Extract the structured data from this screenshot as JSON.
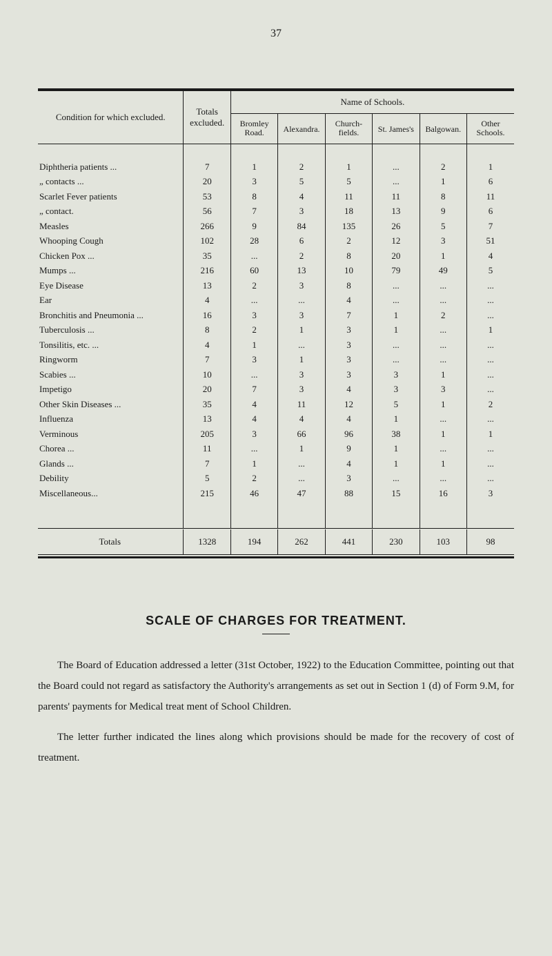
{
  "pageNumber": "37",
  "table": {
    "type": "table",
    "header": {
      "leftLabel": "Condition for which excluded.",
      "totalsLabel": "Totals excluded.",
      "superHeader": "Name of Schools.",
      "schools": [
        "Bromley Road.",
        "Alex­andra.",
        "Church­fields.",
        "St. James's",
        "Bal­gowan.",
        "Other Schools."
      ]
    },
    "rows": [
      {
        "label": "Diphtheria patients ...",
        "vals": [
          "7",
          "1",
          "2",
          "1",
          "...",
          "2",
          "1"
        ]
      },
      {
        "label": "„ contacts ...",
        "vals": [
          "20",
          "3",
          "5",
          "5",
          "...",
          "1",
          "6"
        ]
      },
      {
        "label": "Scarlet Fever patients",
        "vals": [
          "53",
          "8",
          "4",
          "11",
          "11",
          "8",
          "11"
        ]
      },
      {
        "label": "„ contact.",
        "vals": [
          "56",
          "7",
          "3",
          "18",
          "13",
          "9",
          "6"
        ]
      },
      {
        "label": "Measles",
        "vals": [
          "266",
          "9",
          "84",
          "135",
          "26",
          "5",
          "7"
        ]
      },
      {
        "label": "Whooping Cough",
        "vals": [
          "102",
          "28",
          "6",
          "2",
          "12",
          "3",
          "51"
        ]
      },
      {
        "label": "Chicken Pox ...",
        "vals": [
          "35",
          "...",
          "2",
          "8",
          "20",
          "1",
          "4"
        ]
      },
      {
        "label": "Mumps ...",
        "vals": [
          "216",
          "60",
          "13",
          "10",
          "79",
          "49",
          "5"
        ]
      },
      {
        "label": "Eye Disease",
        "vals": [
          "13",
          "2",
          "3",
          "8",
          "...",
          "...",
          "..."
        ]
      },
      {
        "label": "Ear",
        "vals": [
          "4",
          "...",
          "...",
          "4",
          "...",
          "...",
          "..."
        ]
      },
      {
        "label": "Bronchitis and Pneumonia ...",
        "vals": [
          "16",
          "3",
          "3",
          "7",
          "1",
          "2",
          "..."
        ]
      },
      {
        "label": "Tuberculosis ...",
        "vals": [
          "8",
          "2",
          "1",
          "3",
          "1",
          "...",
          "1"
        ]
      },
      {
        "label": "Tonsilitis, etc. ...",
        "vals": [
          "4",
          "1",
          "...",
          "3",
          "...",
          "...",
          "..."
        ]
      },
      {
        "label": "Ringworm",
        "vals": [
          "7",
          "3",
          "1",
          "3",
          "...",
          "...",
          "..."
        ]
      },
      {
        "label": "Scabies ...",
        "vals": [
          "10",
          "...",
          "3",
          "3",
          "3",
          "1",
          "..."
        ]
      },
      {
        "label": "Impetigo",
        "vals": [
          "20",
          "7",
          "3",
          "4",
          "3",
          "3",
          "..."
        ]
      },
      {
        "label": "Other Skin Diseases ...",
        "vals": [
          "35",
          "4",
          "11",
          "12",
          "5",
          "1",
          "2"
        ]
      },
      {
        "label": "Influenza",
        "vals": [
          "13",
          "4",
          "4",
          "4",
          "1",
          "...",
          "..."
        ]
      },
      {
        "label": "Verminous",
        "vals": [
          "205",
          "3",
          "66",
          "96",
          "38",
          "1",
          "1"
        ]
      },
      {
        "label": "Chorea ...",
        "vals": [
          "11",
          "...",
          "1",
          "9",
          "1",
          "...",
          "..."
        ]
      },
      {
        "label": "Glands ...",
        "vals": [
          "7",
          "1",
          "...",
          "4",
          "1",
          "1",
          "..."
        ]
      },
      {
        "label": "Debility",
        "vals": [
          "5",
          "2",
          "...",
          "3",
          "...",
          "...",
          "..."
        ]
      },
      {
        "label": "Miscellaneous...",
        "vals": [
          "215",
          "46",
          "47",
          "88",
          "15",
          "16",
          "3"
        ]
      }
    ],
    "totals": {
      "label": "Totals",
      "vals": [
        "1328",
        "194",
        "262",
        "441",
        "230",
        "103",
        "98"
      ]
    },
    "colors": {
      "background": "#e2e4dc",
      "text": "#1a1a1a",
      "rule": "#1a1a1a"
    },
    "column_widths": {
      "label": 185,
      "num": 60
    },
    "fontsize": 13
  },
  "sectionTitle": "SCALE OF CHARGES FOR TREATMENT.",
  "paragraphs": [
    "The Board of Education addressed a letter (31st October, 1922) to the Education Committee, pointing out that the Board could not regard as satisfactory the Authority's arrangements as set out in Section 1 (d) of Form 9.M, for parents' payments for Medical treat ment of School Children.",
    "The letter further indicated the lines along which provisions should be made for the recovery of cost of treatment."
  ]
}
